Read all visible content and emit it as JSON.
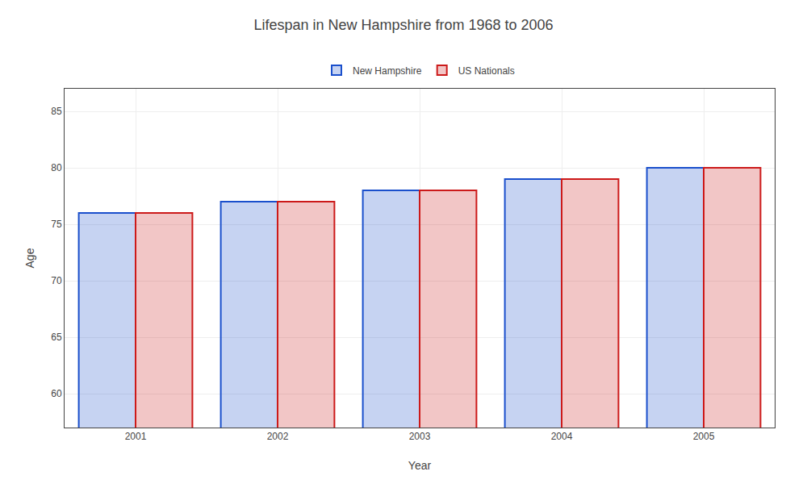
{
  "chart_data": {
    "type": "bar",
    "title": "Lifespan in New Hampshire from 1968 to 2006",
    "x_label": "Year",
    "y_label": "Age",
    "categories": [
      "2001",
      "2002",
      "2003",
      "2004",
      "2005"
    ],
    "series": [
      {
        "name": "New Hampshire",
        "color": "#1a4fcc",
        "values": [
          76,
          77,
          78,
          79,
          80
        ]
      },
      {
        "name": "US Nationals",
        "color": "#cc1a1a",
        "values": [
          76,
          77,
          78,
          79,
          80
        ]
      }
    ],
    "ylim": [
      57,
      87
    ],
    "yticks": [
      60,
      65,
      70,
      75,
      80,
      85
    ],
    "grid": true,
    "legend": "top"
  }
}
